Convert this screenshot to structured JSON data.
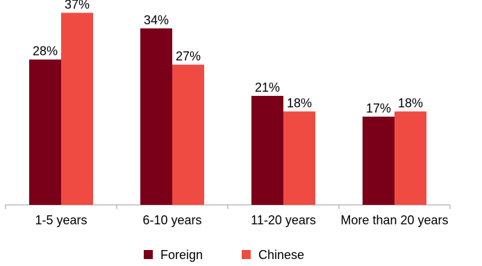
{
  "chart_data": {
    "type": "bar",
    "categories": [
      "1-5 years",
      "6-10 years",
      "11-20 years",
      "More than 20 years"
    ],
    "series": [
      {
        "name": "Foreign",
        "values": [
          28,
          34,
          21,
          17
        ],
        "color": "#7a0019"
      },
      {
        "name": "Chinese",
        "values": [
          37,
          27,
          18,
          18
        ],
        "color": "#f04b43"
      }
    ],
    "value_suffix": "%",
    "ylim": [
      0,
      40
    ],
    "grid": false,
    "legend_position": "bottom-center"
  }
}
